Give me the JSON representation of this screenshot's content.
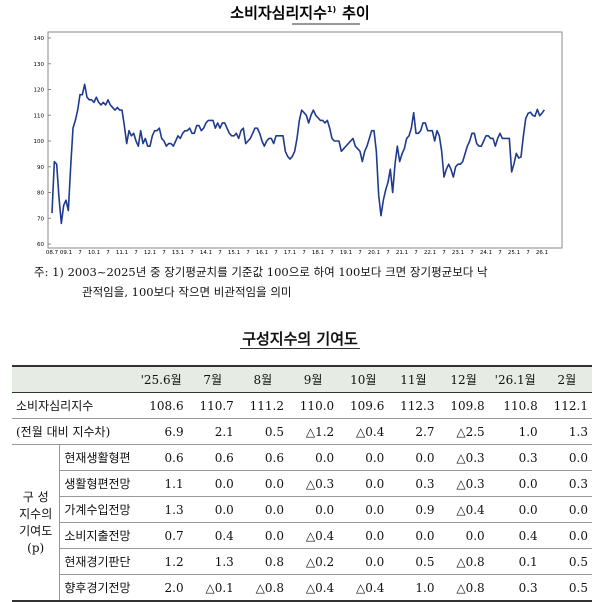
{
  "chart_data": {
    "type": "line",
    "title": "소비자심리지수",
    "title_sup": "1)",
    "title_suffix": "추이",
    "color": "#1f3b8f",
    "categories": [
      "08.7",
      null,
      null,
      null,
      null,
      null,
      "09.1",
      null,
      null,
      null,
      null,
      null,
      "7",
      null,
      null,
      null,
      null,
      null,
      "10.1",
      null,
      null,
      null,
      null,
      null,
      "7",
      null,
      null,
      null,
      null,
      null,
      "11.1",
      null,
      null,
      null,
      null,
      null,
      "7",
      null,
      null,
      null,
      null,
      null,
      "12.1",
      null,
      null,
      null,
      null,
      null,
      "7",
      null,
      null,
      null,
      null,
      null,
      "13.1",
      null,
      null,
      null,
      null,
      null,
      "7",
      null,
      null,
      null,
      null,
      null,
      "14.1",
      null,
      null,
      null,
      null,
      null,
      "7",
      null,
      null,
      null,
      null,
      null,
      "15.1",
      null,
      null,
      null,
      null,
      null,
      "7",
      null,
      null,
      null,
      null,
      null,
      "16.1",
      null,
      null,
      null,
      null,
      null,
      "7",
      null,
      null,
      null,
      null,
      null,
      "17.1",
      null,
      null,
      null,
      null,
      null,
      "7",
      null,
      null,
      null,
      null,
      null,
      "18.1",
      null,
      null,
      null,
      null,
      null,
      "7",
      null,
      null,
      null,
      null,
      null,
      "19.1",
      null,
      null,
      null,
      null,
      null,
      "7",
      null,
      null,
      null,
      null,
      null,
      "20.1",
      null,
      null,
      null,
      null,
      null,
      "7",
      null,
      null,
      null,
      null,
      null,
      "21.1",
      null,
      null,
      null,
      null,
      null,
      "7",
      null,
      null,
      null,
      null,
      null,
      "22.1",
      null,
      null,
      null,
      null,
      null,
      "7",
      null,
      null,
      null,
      null,
      null,
      "23.1",
      null,
      null,
      null,
      null,
      null,
      "7",
      null,
      null,
      null,
      null,
      null,
      "24.1",
      null,
      null,
      null,
      null,
      null,
      "7",
      null,
      null,
      null,
      null,
      null,
      "25.1",
      null,
      null,
      null,
      null,
      null,
      "7",
      null,
      null,
      null,
      null,
      null,
      "26.1",
      null
    ],
    "values": [
      72,
      92,
      91,
      78,
      68,
      75,
      77,
      73,
      90,
      105,
      108,
      112,
      118,
      118,
      122,
      117,
      116,
      116,
      115,
      117,
      115,
      114,
      115,
      114,
      116,
      114,
      113,
      112,
      113,
      112,
      112,
      106,
      99,
      104,
      102,
      103,
      100,
      98,
      104,
      99,
      101,
      98,
      98,
      102,
      104,
      104,
      105,
      101,
      100,
      98,
      99,
      99,
      98,
      100,
      102,
      101,
      103,
      104,
      104,
      105,
      103,
      103,
      106,
      106,
      104,
      105,
      107,
      108,
      108,
      108,
      105,
      107,
      105,
      107,
      107,
      105,
      103,
      102,
      102,
      103,
      101,
      104,
      105,
      99,
      100,
      101,
      103,
      105,
      105,
      103,
      100,
      98,
      100,
      101,
      101,
      99,
      102,
      102,
      102,
      102,
      96,
      94,
      93,
      94,
      96,
      101,
      108,
      112,
      111,
      110,
      107,
      110,
      112,
      110,
      109,
      108,
      108,
      107,
      108,
      105,
      101,
      100,
      100,
      100,
      96,
      97,
      98,
      99,
      100,
      101,
      98,
      97,
      96,
      92,
      96,
      98,
      101,
      104,
      104,
      96,
      79,
      71,
      77,
      81,
      84,
      89,
      80,
      91,
      98,
      92,
      95,
      97,
      101,
      102,
      105,
      111,
      103,
      103,
      104,
      107,
      107,
      104,
      104,
      104,
      100,
      104,
      102,
      96,
      86,
      89,
      91,
      89,
      86,
      90,
      91,
      91,
      92,
      95,
      98,
      100,
      103,
      103,
      99,
      98,
      98,
      100,
      102,
      102,
      101,
      101,
      98,
      101,
      103,
      101,
      101,
      101,
      101,
      88,
      91.2,
      95.2,
      93.4,
      93.8,
      101.8,
      108.6,
      110.7,
      111.2,
      110.0,
      109.6,
      112.3,
      109.8,
      110.8,
      112.1
    ],
    "ylim": [
      60,
      140
    ],
    "yticks": [
      60,
      70,
      80,
      90,
      100,
      110,
      120,
      130,
      140
    ]
  },
  "note": {
    "prefix": "주: 1)",
    "lines": [
      "2003~2025년 중 장기평균치를 기준값 100으로 하여 100보다 크면 장기평균보다 낙",
      "관적임을, 100보다 작으면 비관적임을 의미"
    ]
  },
  "table": {
    "title": "구성지수의 기여도",
    "header": [
      "'25.6월",
      "7월",
      "8월",
      "9월",
      "10월",
      "11월",
      "12월",
      "'26.1월",
      "2월"
    ],
    "rows": [
      {
        "label": "소비자심리지수",
        "cells": [
          "108.6",
          "110.7",
          "111.2",
          "110.0",
          "109.6",
          "112.3",
          "109.8",
          "110.8",
          "112.1"
        ]
      },
      {
        "label": "(전월 대비 지수차)",
        "cells": [
          "6.9",
          "2.1",
          "0.5",
          "△1.2",
          "△0.4",
          "2.7",
          "△2.5",
          "1.0",
          "1.3"
        ]
      }
    ],
    "group_label": [
      "구 성",
      "지수의",
      "기여도",
      "(p)"
    ],
    "group_rows": [
      {
        "label": "현재생활형편",
        "cells": [
          "0.6",
          "0.6",
          "0.6",
          "0.0",
          "0.0",
          "0.0",
          "△0.3",
          "0.3",
          "0.0"
        ]
      },
      {
        "label": "생활형편전망",
        "cells": [
          "1.1",
          "0.0",
          "0.0",
          "△0.3",
          "0.0",
          "0.3",
          "△0.3",
          "0.0",
          "0.3"
        ]
      },
      {
        "label": "가계수입전망",
        "cells": [
          "1.3",
          "0.0",
          "0.0",
          "0.0",
          "0.0",
          "0.9",
          "△0.4",
          "0.0",
          "0.0"
        ]
      },
      {
        "label": "소비지출전망",
        "cells": [
          "0.7",
          "0.4",
          "0.0",
          "△0.4",
          "0.0",
          "0.0",
          "0.0",
          "0.4",
          "0.0"
        ]
      },
      {
        "label": "현재경기판단",
        "cells": [
          "1.2",
          "1.3",
          "0.8",
          "△0.2",
          "0.0",
          "0.5",
          "△0.8",
          "0.1",
          "0.5"
        ]
      },
      {
        "label": "향후경기전망",
        "cells": [
          "2.0",
          "△0.1",
          "△0.8",
          "△0.4",
          "△0.4",
          "1.0",
          "△0.8",
          "0.3",
          "0.5"
        ]
      }
    ]
  }
}
